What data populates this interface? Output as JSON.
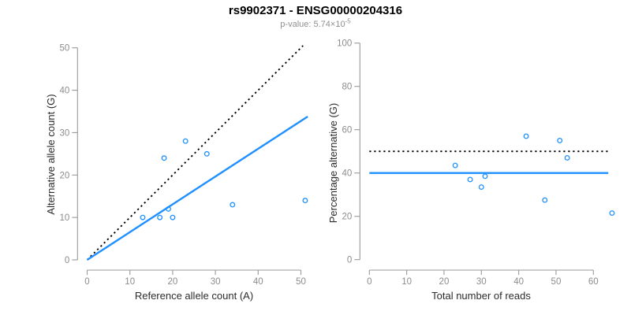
{
  "header": {
    "title": "rs9902371 - ENSG00000204316",
    "subtitle_base": "p-value: 5.74×10",
    "subtitle_exponent": "-5"
  },
  "colors": {
    "accent_blue": "#1E90FF",
    "dotted_black": "#000000",
    "axis_gray": "#999999",
    "tick_text_gray": "#8c8c8c"
  },
  "chart_data": [
    {
      "type": "scatter",
      "panel": "left",
      "xlabel": "Reference allele count (A)",
      "ylabel": "Alternative allele count (G)",
      "xlim": [
        0,
        50
      ],
      "ylim": [
        0,
        50
      ],
      "x_ticks": [
        0,
        10,
        20,
        30,
        40,
        50
      ],
      "y_ticks": [
        0,
        10,
        20,
        30,
        40,
        50
      ],
      "grid": false,
      "legend": false,
      "marker": "open-circle",
      "points": [
        [
          13,
          10
        ],
        [
          17,
          10
        ],
        [
          18,
          24
        ],
        [
          19,
          12
        ],
        [
          20,
          10
        ],
        [
          23,
          28
        ],
        [
          28,
          25
        ],
        [
          34,
          13
        ],
        [
          51,
          14
        ]
      ],
      "lines": [
        {
          "name": "identity",
          "style": "dotted",
          "color": "#000000",
          "from": [
            0,
            0
          ],
          "to": [
            50.5,
            50.5
          ]
        },
        {
          "name": "fit",
          "style": "solid",
          "color": "#1E90FF",
          "from": [
            0,
            0
          ],
          "to": [
            51.6,
            33.8
          ]
        }
      ]
    },
    {
      "type": "scatter",
      "panel": "right",
      "xlabel": "Total number of reads",
      "ylabel": "Percentage alternative (G)",
      "xlim": [
        0,
        60
      ],
      "ylim": [
        0,
        100
      ],
      "x_ticks": [
        0,
        10,
        20,
        30,
        40,
        50,
        60
      ],
      "y_ticks": [
        0,
        20,
        40,
        60,
        80,
        100
      ],
      "grid": false,
      "legend": false,
      "marker": "open-circle",
      "points": [
        [
          23,
          43.5
        ],
        [
          27,
          37
        ],
        [
          30,
          33.5
        ],
        [
          31,
          38.5
        ],
        [
          42,
          57
        ],
        [
          47,
          27.5
        ],
        [
          51,
          55
        ],
        [
          53,
          47
        ],
        [
          65,
          21.5
        ]
      ],
      "lines": [
        {
          "name": "expected-50pct",
          "style": "dotted",
          "color": "#000000",
          "y": 50,
          "x_from": 0,
          "x_to": 64
        },
        {
          "name": "mean-percentage",
          "style": "solid",
          "color": "#1E90FF",
          "y": 40,
          "x_from": 0,
          "x_to": 64
        }
      ]
    }
  ]
}
